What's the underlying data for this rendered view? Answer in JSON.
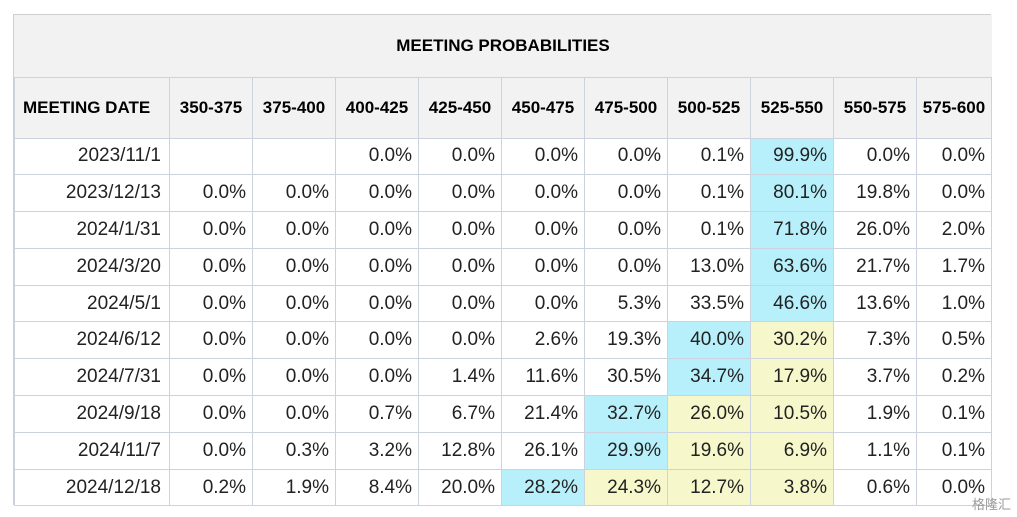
{
  "table": {
    "title": "MEETING PROBABILITIES",
    "date_header": "MEETING DATE",
    "columns": [
      "350-375",
      "375-400",
      "400-425",
      "425-450",
      "450-475",
      "475-500",
      "500-525",
      "525-550",
      "550-575",
      "575-600"
    ],
    "rows": [
      {
        "date": "2023/11/1",
        "values": [
          "",
          "",
          "0.0%",
          "0.0%",
          "0.0%",
          "0.0%",
          "0.1%",
          "99.9%",
          "0.0%",
          "0.0%"
        ],
        "highlight": [
          "",
          "",
          "",
          "",
          "",
          "",
          "",
          "blue",
          "",
          ""
        ]
      },
      {
        "date": "2023/12/13",
        "values": [
          "0.0%",
          "0.0%",
          "0.0%",
          "0.0%",
          "0.0%",
          "0.0%",
          "0.1%",
          "80.1%",
          "19.8%",
          "0.0%"
        ],
        "highlight": [
          "",
          "",
          "",
          "",
          "",
          "",
          "",
          "blue",
          "",
          ""
        ]
      },
      {
        "date": "2024/1/31",
        "values": [
          "0.0%",
          "0.0%",
          "0.0%",
          "0.0%",
          "0.0%",
          "0.0%",
          "0.1%",
          "71.8%",
          "26.0%",
          "2.0%"
        ],
        "highlight": [
          "",
          "",
          "",
          "",
          "",
          "",
          "",
          "blue",
          "",
          ""
        ]
      },
      {
        "date": "2024/3/20",
        "values": [
          "0.0%",
          "0.0%",
          "0.0%",
          "0.0%",
          "0.0%",
          "0.0%",
          "13.0%",
          "63.6%",
          "21.7%",
          "1.7%"
        ],
        "highlight": [
          "",
          "",
          "",
          "",
          "",
          "",
          "",
          "blue",
          "",
          ""
        ]
      },
      {
        "date": "2024/5/1",
        "values": [
          "0.0%",
          "0.0%",
          "0.0%",
          "0.0%",
          "0.0%",
          "5.3%",
          "33.5%",
          "46.6%",
          "13.6%",
          "1.0%"
        ],
        "highlight": [
          "",
          "",
          "",
          "",
          "",
          "",
          "",
          "blue",
          "",
          ""
        ]
      },
      {
        "date": "2024/6/12",
        "values": [
          "0.0%",
          "0.0%",
          "0.0%",
          "0.0%",
          "2.6%",
          "19.3%",
          "40.0%",
          "30.2%",
          "7.3%",
          "0.5%"
        ],
        "highlight": [
          "",
          "",
          "",
          "",
          "",
          "",
          "blue",
          "yellow",
          "",
          ""
        ]
      },
      {
        "date": "2024/7/31",
        "values": [
          "0.0%",
          "0.0%",
          "0.0%",
          "1.4%",
          "11.6%",
          "30.5%",
          "34.7%",
          "17.9%",
          "3.7%",
          "0.2%"
        ],
        "highlight": [
          "",
          "",
          "",
          "",
          "",
          "",
          "blue",
          "yellow",
          "",
          ""
        ]
      },
      {
        "date": "2024/9/18",
        "values": [
          "0.0%",
          "0.0%",
          "0.7%",
          "6.7%",
          "21.4%",
          "32.7%",
          "26.0%",
          "10.5%",
          "1.9%",
          "0.1%"
        ],
        "highlight": [
          "",
          "",
          "",
          "",
          "",
          "blue",
          "yellow",
          "yellow",
          "",
          ""
        ]
      },
      {
        "date": "2024/11/7",
        "values": [
          "0.0%",
          "0.3%",
          "3.2%",
          "12.8%",
          "26.1%",
          "29.9%",
          "19.6%",
          "6.9%",
          "1.1%",
          "0.1%"
        ],
        "highlight": [
          "",
          "",
          "",
          "",
          "",
          "blue",
          "yellow",
          "yellow",
          "",
          ""
        ]
      },
      {
        "date": "2024/12/18",
        "values": [
          "0.2%",
          "1.9%",
          "8.4%",
          "20.0%",
          "28.2%",
          "24.3%",
          "12.7%",
          "3.8%",
          "0.6%",
          "0.0%"
        ],
        "highlight": [
          "",
          "",
          "",
          "",
          "blue",
          "yellow",
          "yellow",
          "yellow",
          "",
          ""
        ]
      }
    ]
  },
  "colors": {
    "highlight_blue": "#b7f0fb",
    "highlight_yellow": "#f7f7cc"
  },
  "watermark": "格隆汇"
}
